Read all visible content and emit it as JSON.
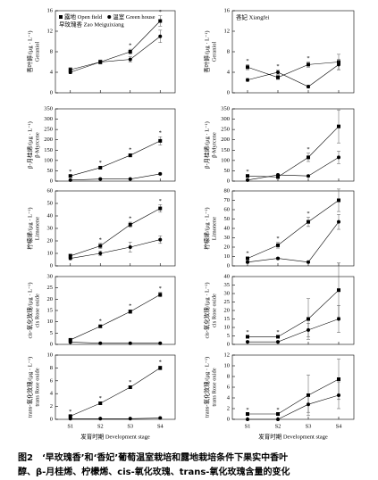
{
  "chart_data": [
    {
      "type": "line",
      "title": "早玫瑰香 Zao Meiguixiang",
      "ylabel": [
        "香叶醇/(μg · L⁻¹)",
        "Geraniol"
      ],
      "ylim": [
        0,
        16
      ],
      "yticks": [
        0,
        4,
        8,
        12,
        16
      ],
      "legend": "upper left",
      "series": [
        {
          "name": "露地 Open field",
          "color": "#000000",
          "marker": "square",
          "values": [
            4.5,
            6,
            8,
            14
          ],
          "errors": [
            0.4,
            0.4,
            0.5,
            1
          ]
        },
        {
          "name": "温室 Green house",
          "color": "#000000",
          "marker": "circle",
          "values": [
            4,
            6,
            6.5,
            11
          ],
          "errors": [
            0.3,
            0.4,
            0.5,
            1.2
          ]
        }
      ],
      "annotations": [
        null,
        null,
        "*",
        "*"
      ]
    },
    {
      "type": "line",
      "ylabel": [
        "β-月桂烯/(μg · L⁻¹)",
        "β-Myrcene"
      ],
      "ylim": [
        0,
        350
      ],
      "yticks": [
        0,
        50,
        100,
        150,
        200,
        250,
        300,
        350
      ],
      "series": [
        {
          "color": "#000000",
          "marker": "square",
          "values": [
            25,
            65,
            125,
            195
          ],
          "errors": [
            4,
            6,
            8,
            20
          ]
        },
        {
          "color": "#000000",
          "marker": "circle",
          "values": [
            5,
            10,
            10,
            35
          ],
          "errors": [
            2,
            2,
            2,
            4
          ]
        }
      ],
      "annotations": [
        "*",
        "*",
        "*",
        "*"
      ]
    },
    {
      "type": "line",
      "ylabel": [
        "柠檬烯/(μg · L⁻¹)",
        "Limonene"
      ],
      "ylim": [
        0,
        60
      ],
      "yticks": [
        0,
        10,
        20,
        30,
        40,
        50,
        60
      ],
      "series": [
        {
          "color": "#000000",
          "marker": "square",
          "values": [
            8,
            16,
            33,
            46
          ],
          "errors": [
            1.5,
            2,
            2,
            3
          ]
        },
        {
          "color": "#000000",
          "marker": "circle",
          "values": [
            6,
            10,
            15,
            21
          ],
          "errors": [
            1,
            2,
            4,
            3
          ]
        }
      ],
      "annotations": [
        null,
        "*",
        "*",
        "*"
      ]
    },
    {
      "type": "line",
      "ylabel": [
        "cis-氧化玫瑰/(μg · L⁻¹)",
        "cis Rose oxide"
      ],
      "ylim": [
        0,
        30
      ],
      "yticks": [
        0,
        5,
        10,
        15,
        20,
        25,
        30
      ],
      "series": [
        {
          "color": "#000000",
          "marker": "square",
          "values": [
            2,
            8,
            14.5,
            22
          ],
          "errors": [
            0.3,
            0.6,
            0.8,
            1
          ]
        },
        {
          "color": "#000000",
          "marker": "circle",
          "values": [
            1,
            0.5,
            0.5,
            0.5
          ],
          "errors": [
            0.2,
            0.1,
            0.1,
            0.1
          ]
        }
      ],
      "annotations": [
        null,
        "*",
        "*",
        "*"
      ]
    },
    {
      "type": "line",
      "ylabel": [
        "trans-氧化玫瑰/(μg · L⁻¹)",
        "trans Rose oxide"
      ],
      "ylim": [
        0,
        10
      ],
      "yticks": [
        0,
        2,
        4,
        6,
        8,
        10
      ],
      "categories": [
        "S1",
        "S2",
        "S3",
        "S4"
      ],
      "xlabel": "发育时期 Development stage",
      "series": [
        {
          "color": "#000000",
          "marker": "square",
          "values": [
            0.5,
            2.5,
            5,
            8
          ],
          "errors": [
            0.1,
            0.2,
            0.2,
            0.3
          ]
        },
        {
          "color": "#000000",
          "marker": "circle",
          "values": [
            0.1,
            0.1,
            0.1,
            0.2
          ],
          "errors": [
            0.05,
            0.05,
            0.05,
            0.05
          ]
        }
      ],
      "annotations": [
        "*",
        "*",
        "*",
        "*"
      ]
    },
    {
      "type": "line",
      "title": "香妃 Xiangfei",
      "ylabel": [
        "香叶醇/(μg · L⁻¹)",
        "Geraniol"
      ],
      "ylim": [
        0,
        16
      ],
      "yticks": [
        0,
        4,
        8,
        12,
        16
      ],
      "series": [
        {
          "color": "#000000",
          "marker": "square",
          "values": [
            5,
            3,
            5.5,
            6
          ],
          "errors": [
            0.5,
            0.4,
            0.5,
            1.5
          ]
        },
        {
          "color": "#000000",
          "marker": "circle",
          "values": [
            2.5,
            4,
            1.2,
            5.5
          ],
          "errors": [
            0.3,
            0.4,
            0.3,
            1
          ]
        }
      ],
      "annotations": [
        "*",
        "*",
        "*",
        null
      ]
    },
    {
      "type": "line",
      "ylabel": [
        "β-月桂烯/(μg · L⁻¹)",
        "β-Myrcene"
      ],
      "ylim": [
        0,
        350
      ],
      "yticks": [
        0,
        50,
        100,
        150,
        200,
        250,
        300,
        350
      ],
      "series": [
        {
          "color": "#000000",
          "marker": "square",
          "values": [
            25,
            20,
            115,
            265
          ],
          "errors": [
            4,
            4,
            20,
            80
          ]
        },
        {
          "color": "#000000",
          "marker": "circle",
          "values": [
            5,
            30,
            25,
            115
          ],
          "errors": [
            2,
            4,
            4,
            30
          ]
        }
      ],
      "annotations": [
        "*",
        null,
        "*",
        null
      ]
    },
    {
      "type": "line",
      "ylabel": [
        "柠檬烯/(μg · L⁻¹)",
        "Limonene"
      ],
      "ylim": [
        0,
        80
      ],
      "yticks": [
        0,
        10,
        20,
        30,
        40,
        50,
        60,
        70,
        80
      ],
      "series": [
        {
          "color": "#000000",
          "marker": "square",
          "values": [
            8,
            22,
            47,
            70
          ],
          "errors": [
            1.5,
            3,
            5,
            12
          ]
        },
        {
          "color": "#000000",
          "marker": "circle",
          "values": [
            4,
            8,
            4,
            47
          ],
          "errors": [
            1,
            1,
            1,
            8
          ]
        }
      ],
      "annotations": [
        "*",
        "*",
        "*",
        null
      ]
    },
    {
      "type": "line",
      "ylabel": [
        "cis-氧化玫瑰/(μg · L⁻¹)",
        "cis Rose oxide"
      ],
      "ylim": [
        0,
        40
      ],
      "yticks": [
        0,
        5,
        10,
        15,
        20,
        25,
        30,
        35,
        40
      ],
      "series": [
        {
          "color": "#000000",
          "marker": "square",
          "values": [
            4.5,
            4.5,
            15,
            32
          ],
          "errors": [
            0.5,
            0.5,
            12,
            16
          ]
        },
        {
          "color": "#000000",
          "marker": "circle",
          "values": [
            1.5,
            1.5,
            8.5,
            15
          ],
          "errors": [
            0.3,
            0.3,
            4,
            8
          ]
        }
      ],
      "annotations": [
        "*",
        "*",
        null,
        null
      ]
    },
    {
      "type": "line",
      "ylabel": [
        "trans-氧化玫瑰/(μg · L⁻¹)",
        "trans Rose oxide"
      ],
      "ylim": [
        0,
        12
      ],
      "yticks": [
        0,
        2,
        4,
        6,
        8,
        10,
        12
      ],
      "categories": [
        "S1",
        "S2",
        "S3",
        "S4"
      ],
      "xlabel": "发育时期 Development stage",
      "series": [
        {
          "color": "#000000",
          "marker": "square",
          "values": [
            1,
            1,
            4.5,
            7.5
          ],
          "errors": [
            0.1,
            0.1,
            3.8,
            3.8
          ]
        },
        {
          "color": "#000000",
          "marker": "circle",
          "values": [
            0,
            0,
            2.8,
            4.5
          ],
          "errors": [
            0.05,
            0.05,
            1.5,
            2.5
          ]
        }
      ],
      "annotations": [
        "*",
        "*",
        null,
        null
      ]
    }
  ],
  "caption": [
    "图2　‘早玫瑰香’和‘香妃’葡萄温室栽培和露地栽培条件下果实中香叶",
    "醇、β-月桂烯、柠檬烯、cis-氧化玫瑰、trans-氧化玫瑰含量的变化"
  ]
}
